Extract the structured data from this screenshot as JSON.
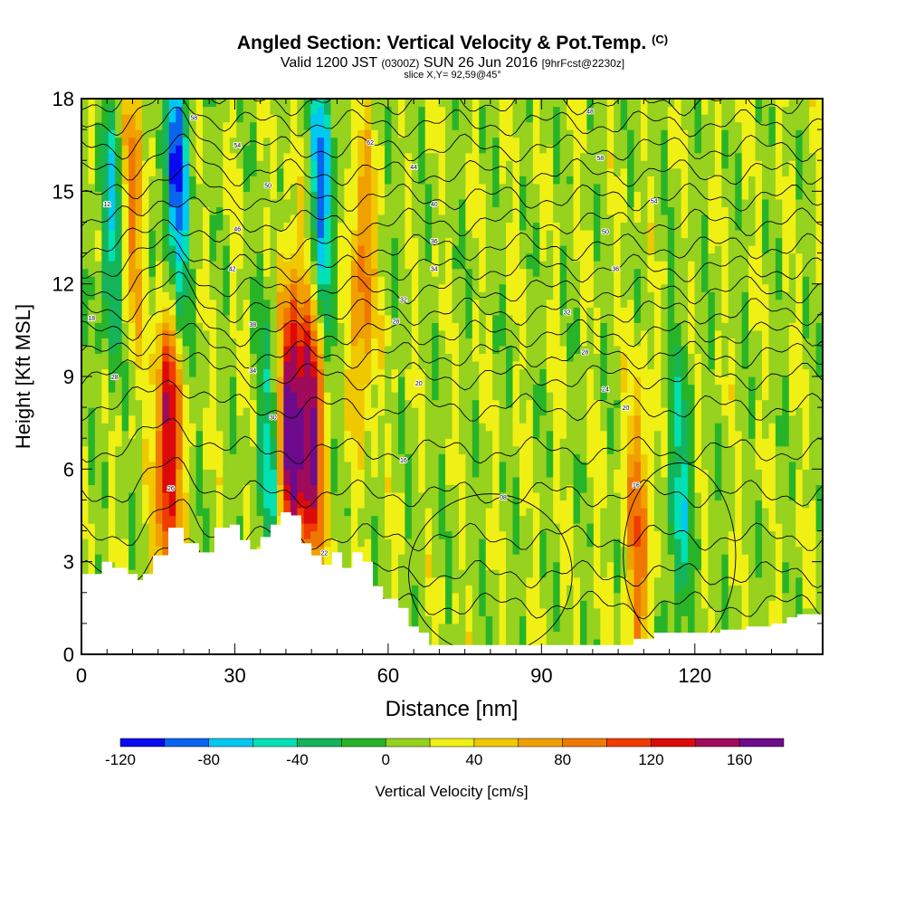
{
  "header": {
    "title": "Angled Section: Vertical Velocity & Pot.Temp.",
    "title_mark": "(C)",
    "valid_prefix": "Valid 1200 JST",
    "zulu": "(0300Z)",
    "valid_date": "SUN 26 Jun 2016",
    "forecast": "[9hrFcst@2230z]",
    "slice": "slice X,Y= 92,59@45°"
  },
  "colorbar": {
    "label": "Vertical Velocity [cm/s]",
    "tick_labels": [
      "-120",
      "-80",
      "-40",
      "0",
      "40",
      "80",
      "120",
      "160"
    ],
    "bounds": [
      -120,
      -100,
      -80,
      -60,
      -40,
      -20,
      0,
      20,
      40,
      60,
      80,
      100,
      120,
      140,
      160,
      180
    ],
    "colors": [
      "#0a0af0",
      "#0a64f0",
      "#00c8f0",
      "#00e0b4",
      "#14b45a",
      "#28b428",
      "#96d21e",
      "#f0f014",
      "#f0c800",
      "#f0a000",
      "#f07800",
      "#f03c00",
      "#dc0a0a",
      "#a00a5a",
      "#6e0a8c"
    ]
  },
  "chart_data": {
    "type": "heatmap",
    "title": "Angled Section: Vertical Velocity & Pot.Temp.",
    "xlabel": "Distance [nm]",
    "ylabel": "Height [Kft MSL]",
    "xlim": [
      0,
      145
    ],
    "ylim": [
      0,
      18
    ],
    "x_ticks": [
      "0",
      "30",
      "60",
      "90",
      "120"
    ],
    "y_ticks": [
      "0",
      "3",
      "6",
      "9",
      "12",
      "15",
      "18"
    ],
    "colorbar_label": "Vertical Velocity [cm/s]",
    "updraft_columns": [
      {
        "x": 17,
        "y": 7,
        "w": 160
      },
      {
        "x": 41,
        "y": 7.5,
        "w": 180
      },
      {
        "x": 45,
        "y": 7,
        "w": 160
      },
      {
        "x": 55,
        "y": 12,
        "w": 90
      },
      {
        "x": 10,
        "y": 15,
        "w": 80
      },
      {
        "x": 109,
        "y": 4,
        "w": 90
      }
    ],
    "downdraft_columns": [
      {
        "x": 18.5,
        "y": 15,
        "w": -110
      },
      {
        "x": 47,
        "y": 15,
        "w": -90
      },
      {
        "x": 6,
        "y": 14,
        "w": -60
      },
      {
        "x": 117,
        "y": 5,
        "w": -50
      },
      {
        "x": 37,
        "y": 6.5,
        "w": -50
      }
    ],
    "terrain": {
      "x": [
        0,
        4,
        6,
        9,
        11,
        12,
        14,
        17,
        20,
        23,
        26,
        29,
        31,
        33,
        35,
        37,
        39,
        41,
        43,
        45,
        47,
        49,
        51,
        53,
        55,
        57,
        59,
        62,
        64,
        66,
        68,
        70,
        80,
        90,
        100,
        105,
        108,
        112,
        115,
        120,
        125,
        130,
        135,
        138,
        140,
        145
      ],
      "height": [
        2.6,
        3.0,
        2.8,
        2.6,
        2.4,
        2.6,
        3.2,
        4.1,
        3.6,
        3.3,
        4.1,
        4.2,
        3.7,
        3.4,
        3.8,
        4.2,
        4.6,
        4.5,
        3.6,
        3.2,
        2.9,
        3.3,
        2.8,
        3.3,
        3.0,
        2.2,
        1.8,
        1.5,
        0.9,
        0.7,
        0.3,
        0.3,
        0.3,
        0.3,
        0.3,
        0.3,
        0.5,
        0.7,
        0.7,
        0.7,
        0.8,
        0.9,
        1.0,
        1.2,
        1.3,
        1.3
      ]
    },
    "theta_labels": [
      {
        "x": 2,
        "y": 10.9,
        "text": "18"
      },
      {
        "x": 5,
        "y": 14.6,
        "text": "12"
      },
      {
        "x": 6.5,
        "y": 9.0,
        "text": "28"
      },
      {
        "x": 22,
        "y": 17.4,
        "text": "58"
      },
      {
        "x": 30.5,
        "y": 16.5,
        "text": "54"
      },
      {
        "x": 36.5,
        "y": 15.2,
        "text": "50"
      },
      {
        "x": 30.5,
        "y": 13.8,
        "text": "46"
      },
      {
        "x": 29.5,
        "y": 12.5,
        "text": "42"
      },
      {
        "x": 33.5,
        "y": 10.7,
        "text": "38"
      },
      {
        "x": 33.5,
        "y": 9.2,
        "text": "34"
      },
      {
        "x": 37.5,
        "y": 7.7,
        "text": "30"
      },
      {
        "x": 17.5,
        "y": 5.4,
        "text": "26"
      },
      {
        "x": 47.5,
        "y": 3.3,
        "text": "22"
      },
      {
        "x": 56.5,
        "y": 16.6,
        "text": "62"
      },
      {
        "x": 65,
        "y": 15.8,
        "text": "44"
      },
      {
        "x": 69,
        "y": 14.6,
        "text": "40"
      },
      {
        "x": 69,
        "y": 13.4,
        "text": "36"
      },
      {
        "x": 69,
        "y": 12.5,
        "text": "34"
      },
      {
        "x": 63,
        "y": 11.5,
        "text": "32"
      },
      {
        "x": 61.5,
        "y": 10.8,
        "text": "28"
      },
      {
        "x": 66,
        "y": 8.8,
        "text": "20"
      },
      {
        "x": 63,
        "y": 6.3,
        "text": "16"
      },
      {
        "x": 82.5,
        "y": 5.1,
        "text": "08"
      },
      {
        "x": 99.5,
        "y": 17.6,
        "text": "48"
      },
      {
        "x": 101.5,
        "y": 16.1,
        "text": "58"
      },
      {
        "x": 112,
        "y": 14.7,
        "text": "54"
      },
      {
        "x": 102.5,
        "y": 13.7,
        "text": "50"
      },
      {
        "x": 104.5,
        "y": 12.5,
        "text": "36"
      },
      {
        "x": 95,
        "y": 11.1,
        "text": "32"
      },
      {
        "x": 98.5,
        "y": 9.8,
        "text": "28"
      },
      {
        "x": 102.5,
        "y": 8.6,
        "text": "24"
      },
      {
        "x": 106.5,
        "y": 8.0,
        "text": "20"
      },
      {
        "x": 108.5,
        "y": 5.5,
        "text": "16"
      }
    ]
  }
}
